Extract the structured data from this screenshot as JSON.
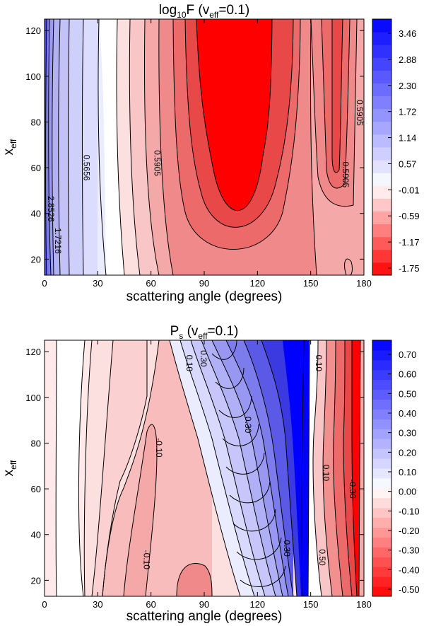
{
  "chart_data": [
    {
      "type": "heatmap",
      "subtype": "filled-contour",
      "title_main": "log",
      "title_sub": "10",
      "title_rest": "F (v",
      "title_sub2": "eff",
      "title_end": "=0.1)",
      "xlabel": "scattering angle (degrees)",
      "ylabel_main": "x",
      "ylabel_sub": "eff",
      "xlim": [
        0,
        180
      ],
      "ylim": [
        13,
        125
      ],
      "x_ticks": [
        0,
        30,
        60,
        90,
        120,
        150,
        180
      ],
      "y_ticks": [
        20,
        40,
        60,
        80,
        100,
        120
      ],
      "colorbar": {
        "labels": [
          "3.46",
          "2.88",
          "2.30",
          "1.72",
          "1.14",
          "0.57",
          "-0.01",
          "-0.59",
          "-1.17",
          "-1.75"
        ],
        "min": -2.04,
        "max": 3.75,
        "levels": 20,
        "low_color": "#ff0000",
        "mid_color": "#ffffff",
        "high_color": "#0000ff"
      },
      "contour_labels": [
        {
          "text": "0.5656",
          "x": 22,
          "y": 60
        },
        {
          "text": "0.5905",
          "x": 62,
          "y": 62
        },
        {
          "text": "0.5905",
          "x": 168,
          "y": 57
        },
        {
          "text": "0.5905",
          "x": 176,
          "y": 84
        },
        {
          "text": "1.7216",
          "x": 6,
          "y": 28
        },
        {
          "text": "2.8526",
          "x": 2,
          "y": 42
        }
      ]
    },
    {
      "type": "heatmap",
      "subtype": "filled-contour",
      "title_main": "P",
      "title_sub": "s",
      "title_rest": "  (v",
      "title_sub2": "eff",
      "title_end": "=0.1)",
      "xlabel": "scattering angle (degrees)",
      "ylabel_main": "x",
      "ylabel_sub": "eff",
      "xlim": [
        0,
        180
      ],
      "ylim": [
        13,
        125
      ],
      "x_ticks": [
        0,
        30,
        60,
        90,
        120,
        150,
        180
      ],
      "y_ticks": [
        20,
        40,
        60,
        80,
        100,
        120
      ],
      "colorbar": {
        "labels": [
          "0.70",
          "0.60",
          "0.50",
          "0.40",
          "0.30",
          "0.20",
          "0.10",
          "0.00",
          "-0.10",
          "-0.20",
          "-0.30",
          "-0.40",
          "-0.50"
        ],
        "min": -0.55,
        "max": 0.75,
        "levels": 26,
        "low_color": "#ff0000",
        "mid_color": "#ffffff",
        "high_color": "#0000ff"
      },
      "contour_labels": [
        {
          "text": "-0.10",
          "x": 63,
          "y": 78
        },
        {
          "text": "-0.10",
          "x": 56,
          "y": 29
        },
        {
          "text": "0.10",
          "x": 80,
          "y": 115
        },
        {
          "text": "0.30",
          "x": 88,
          "y": 117
        },
        {
          "text": "0.30",
          "x": 113,
          "y": 88
        },
        {
          "text": "0.30",
          "x": 135,
          "y": 34
        },
        {
          "text": "0.10",
          "x": 153,
          "y": 115
        },
        {
          "text": "0.10",
          "x": 157,
          "y": 67
        },
        {
          "text": "-0.30",
          "x": 172,
          "y": 60
        },
        {
          "text": "0.50",
          "x": 155,
          "y": 30
        }
      ]
    }
  ]
}
